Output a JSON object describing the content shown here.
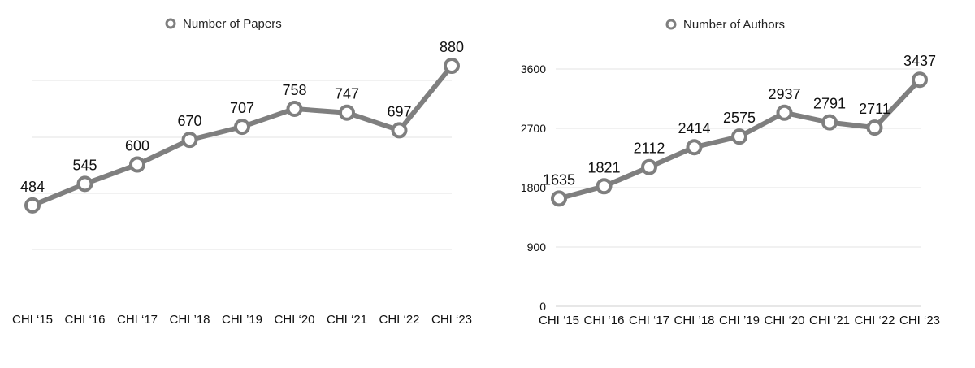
{
  "chart_data": [
    {
      "type": "line",
      "categories": [
        "CHI ‘15",
        "CHI ‘16",
        "CHI ‘17",
        "CHI ’18",
        "CHI ’19",
        "CHI ‘20",
        "CHI ‘21",
        "CHI ‘22",
        "CHI ‘23"
      ],
      "series": [
        {
          "name": "Number of Papers",
          "values": [
            484,
            545,
            600,
            670,
            707,
            758,
            747,
            697,
            880
          ]
        }
      ],
      "ylim": [
        200,
        1000
      ],
      "yticks": [],
      "grid": true,
      "legend": "top-center",
      "color": "#7f7f7f"
    },
    {
      "type": "line",
      "categories": [
        "CHI ‘15",
        "CHI ‘16",
        "CHI ‘17",
        "CHI ’18",
        "CHI ’19",
        "CHI ‘20",
        "CHI ‘21",
        "CHI ‘22",
        "CHI ‘23"
      ],
      "series": [
        {
          "name": "Number of Authors",
          "values": [
            1635,
            1821,
            2112,
            2414,
            2575,
            2937,
            2791,
            2711,
            3437
          ]
        }
      ],
      "ylim": [
        0,
        3600
      ],
      "yticks": [
        "0",
        "900",
        "1800",
        "2700",
        "3600"
      ],
      "grid": true,
      "legend": "top-center",
      "color": "#7f7f7f"
    }
  ]
}
